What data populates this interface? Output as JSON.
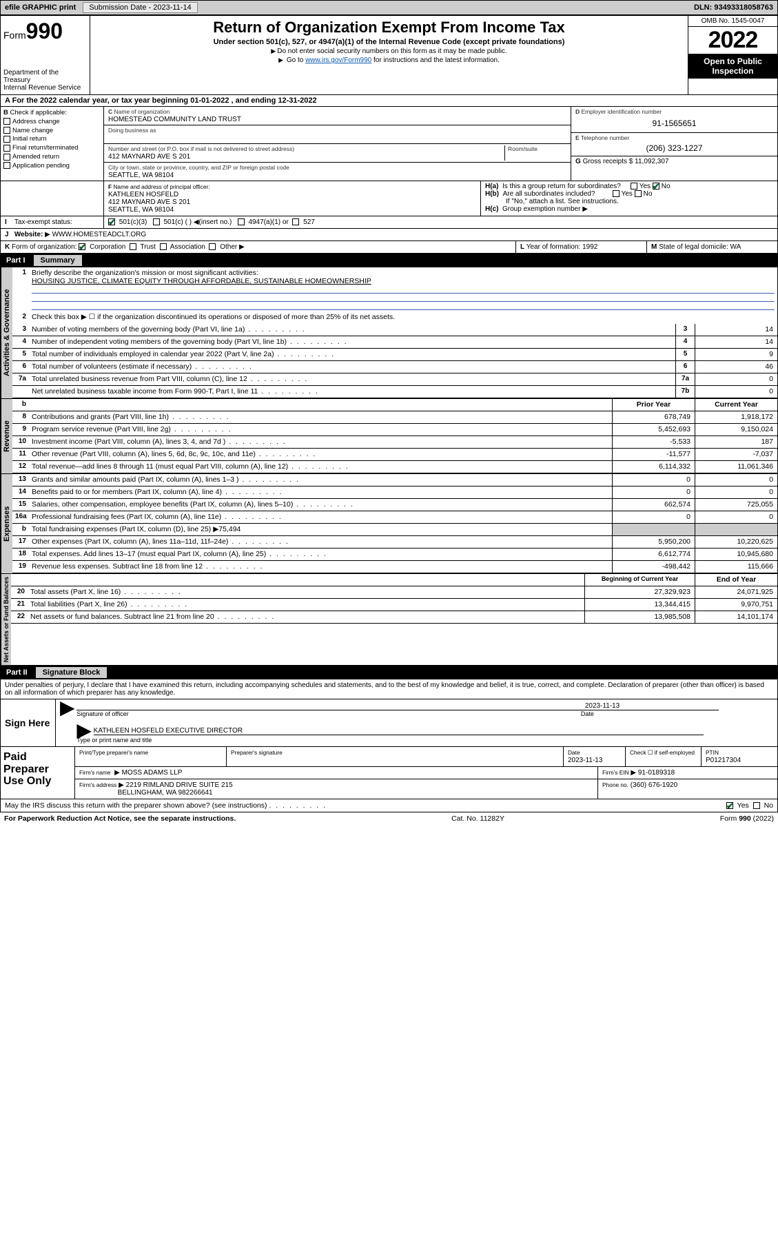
{
  "topbar": {
    "efile": "efile GRAPHIC print",
    "submission_label": "Submission Date - 2023-11-14",
    "dln": "DLN: 93493318058763"
  },
  "header": {
    "form_prefix": "Form",
    "form_number": "990",
    "dept1": "Department of the Treasury",
    "dept2": "Internal Revenue Service",
    "title": "Return of Organization Exempt From Income Tax",
    "subtitle": "Under section 501(c), 527, or 4947(a)(1) of the Internal Revenue Code (except private foundations)",
    "note1": "Do not enter social security numbers on this form as it may be made public.",
    "note2_pre": "Go to ",
    "note2_link": "www.irs.gov/Form990",
    "note2_post": " for instructions and the latest information.",
    "omb": "OMB No. 1545-0047",
    "year": "2022",
    "open": "Open to Public Inspection"
  },
  "line_a": "For the 2022 calendar year, or tax year beginning 01-01-2022   , and ending 12-31-2022",
  "box_b": {
    "label": "Check if applicable:",
    "opts": [
      "Address change",
      "Name change",
      "Initial return",
      "Final return/terminated",
      "Amended return",
      "Application pending"
    ]
  },
  "box_c": {
    "name_lbl": "Name of organization",
    "name": "HOMESTEAD COMMUNITY LAND TRUST",
    "dba_lbl": "Doing business as",
    "addr_lbl": "Number and street (or P.O. box if mail is not delivered to street address)",
    "room_lbl": "Room/suite",
    "addr": "412 MAYNARD AVE S 201",
    "city_lbl": "City or town, state or province, country, and ZIP or foreign postal code",
    "city": "SEATTLE, WA  98104"
  },
  "box_d": {
    "lbl": "Employer identification number",
    "val": "91-1565651"
  },
  "box_e": {
    "lbl": "Telephone number",
    "val": "(206) 323-1227"
  },
  "box_g": {
    "lbl": "Gross receipts $",
    "val": "11,092,307"
  },
  "box_f": {
    "lbl": "Name and address of principal officer:",
    "name": "KATHLEEN HOSFELD",
    "addr1": "412 MAYNARD AVE S 201",
    "addr2": "SEATTLE, WA  98104"
  },
  "box_h": {
    "a": "Is this a group return for subordinates?",
    "b": "Are all subordinates included?",
    "note": "If \"No,\" attach a list. See instructions.",
    "c": "Group exemption number"
  },
  "tax_status": {
    "lbl": "Tax-exempt status:",
    "o1": "501(c)(3)",
    "o2": "501(c) (  )",
    "o2b": "(insert no.)",
    "o3": "4947(a)(1) or",
    "o4": "527"
  },
  "website": {
    "lbl": "Website:",
    "val": "WWW.HOMESTEADCLT.ORG"
  },
  "line_k": {
    "lbl": "Form of organization:",
    "opts": [
      "Corporation",
      "Trust",
      "Association",
      "Other"
    ]
  },
  "line_l": {
    "lbl": "Year of formation:",
    "val": "1992"
  },
  "line_m": {
    "lbl": "State of legal domicile:",
    "val": "WA"
  },
  "part1": {
    "num": "Part I",
    "title": "Summary"
  },
  "mission_lbl": "Briefly describe the organization's mission or most significant activities:",
  "mission": "HOUSING JUSTICE, CLIMATE EQUITY THROUGH AFFORDABLE, SUSTAINABLE HOMEOWNERSHIP",
  "line2": "Check this box ▶ ☐  if the organization discontinued its operations or disposed of more than 25% of its net assets.",
  "gov_rows": [
    {
      "n": "3",
      "t": "Number of voting members of the governing body (Part VI, line 1a)",
      "b": "3",
      "v": "14"
    },
    {
      "n": "4",
      "t": "Number of independent voting members of the governing body (Part VI, line 1b)",
      "b": "4",
      "v": "14"
    },
    {
      "n": "5",
      "t": "Total number of individuals employed in calendar year 2022 (Part V, line 2a)",
      "b": "5",
      "v": "9"
    },
    {
      "n": "6",
      "t": "Total number of volunteers (estimate if necessary)",
      "b": "6",
      "v": "46"
    },
    {
      "n": "7a",
      "t": "Total unrelated business revenue from Part VIII, column (C), line 12",
      "b": "7a",
      "v": "0"
    },
    {
      "n": "",
      "t": "Net unrelated business taxable income from Form 990-T, Part I, line 11",
      "b": "7b",
      "v": "0"
    }
  ],
  "col_hdr": {
    "py": "Prior Year",
    "cy": "Current Year"
  },
  "rev_rows": [
    {
      "n": "8",
      "t": "Contributions and grants (Part VIII, line 1h)",
      "py": "678,749",
      "cy": "1,918,172"
    },
    {
      "n": "9",
      "t": "Program service revenue (Part VIII, line 2g)",
      "py": "5,452,693",
      "cy": "9,150,024"
    },
    {
      "n": "10",
      "t": "Investment income (Part VIII, column (A), lines 3, 4, and 7d )",
      "py": "-5,533",
      "cy": "187"
    },
    {
      "n": "11",
      "t": "Other revenue (Part VIII, column (A), lines 5, 6d, 8c, 9c, 10c, and 11e)",
      "py": "-11,577",
      "cy": "-7,037"
    },
    {
      "n": "12",
      "t": "Total revenue—add lines 8 through 11 (must equal Part VIII, column (A), line 12)",
      "py": "6,114,332",
      "cy": "11,061,346"
    }
  ],
  "exp_rows": [
    {
      "n": "13",
      "t": "Grants and similar amounts paid (Part IX, column (A), lines 1–3 )",
      "py": "0",
      "cy": "0"
    },
    {
      "n": "14",
      "t": "Benefits paid to or for members (Part IX, column (A), line 4)",
      "py": "0",
      "cy": "0"
    },
    {
      "n": "15",
      "t": "Salaries, other compensation, employee benefits (Part IX, column (A), lines 5–10)",
      "py": "662,574",
      "cy": "725,055"
    },
    {
      "n": "16a",
      "t": "Professional fundraising fees (Part IX, column (A), line 11e)",
      "py": "0",
      "cy": "0"
    },
    {
      "n": "b",
      "t": "Total fundraising expenses (Part IX, column (D), line 25) ▶75,494",
      "py": "",
      "cy": "",
      "shade": true
    },
    {
      "n": "17",
      "t": "Other expenses (Part IX, column (A), lines 11a–11d, 11f–24e)",
      "py": "5,950,200",
      "cy": "10,220,625"
    },
    {
      "n": "18",
      "t": "Total expenses. Add lines 13–17 (must equal Part IX, column (A), line 25)",
      "py": "6,612,774",
      "cy": "10,945,680"
    },
    {
      "n": "19",
      "t": "Revenue less expenses. Subtract line 18 from line 12",
      "py": "-498,442",
      "cy": "115,666"
    }
  ],
  "na_hdr": {
    "py": "Beginning of Current Year",
    "cy": "End of Year"
  },
  "na_rows": [
    {
      "n": "20",
      "t": "Total assets (Part X, line 16)",
      "py": "27,329,923",
      "cy": "24,071,925"
    },
    {
      "n": "21",
      "t": "Total liabilities (Part X, line 26)",
      "py": "13,344,415",
      "cy": "9,970,751"
    },
    {
      "n": "22",
      "t": "Net assets or fund balances. Subtract line 21 from line 20",
      "py": "13,985,508",
      "cy": "14,101,174"
    }
  ],
  "part2": {
    "num": "Part II",
    "title": "Signature Block"
  },
  "penalties": "Under penalties of perjury, I declare that I have examined this return, including accompanying schedules and statements, and to the best of my knowledge and belief, it is true, correct, and complete. Declaration of preparer (other than officer) is based on all information of which preparer has any knowledge.",
  "sign": {
    "here": "Sign Here",
    "sig_lbl": "Signature of officer",
    "date_lbl": "Date",
    "date": "2023-11-13",
    "name": "KATHLEEN HOSFELD  EXECUTIVE DIRECTOR",
    "name_lbl": "Type or print name and title"
  },
  "paid": {
    "lbl": "Paid Preparer Use Only",
    "h1": "Print/Type preparer's name",
    "h2": "Preparer's signature",
    "h3": "Date",
    "h3v": "2023-11-13",
    "h4": "Check ☐ if self-employed",
    "h5": "PTIN",
    "h5v": "P01217304",
    "firm_lbl": "Firm's name",
    "firm": "MOSS ADAMS LLP",
    "ein_lbl": "Firm's EIN",
    "ein": "91-0189318",
    "addr_lbl": "Firm's address",
    "addr1": "2219 RIMLAND DRIVE SUITE 215",
    "addr2": "BELLINGHAM, WA  982266641",
    "phone_lbl": "Phone no.",
    "phone": "(360) 676-1920"
  },
  "discuss": "May the IRS discuss this return with the preparer shown above? (see instructions)",
  "footer": {
    "pra": "For Paperwork Reduction Act Notice, see the separate instructions.",
    "cat": "Cat. No. 11282Y",
    "form": "Form 990 (2022)"
  },
  "tabs": {
    "gov": "Activities & Governance",
    "rev": "Revenue",
    "exp": "Expenses",
    "na": "Net Assets or Fund Balances"
  }
}
